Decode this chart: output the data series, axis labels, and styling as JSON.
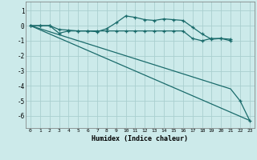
{
  "xlabel": "Humidex (Indice chaleur)",
  "background_color": "#cceaea",
  "grid_color": "#aacfcf",
  "line_color": "#1a6b6b",
  "xlim": [
    -0.5,
    23.5
  ],
  "ylim": [
    -6.8,
    1.6
  ],
  "yticks": [
    1,
    0,
    -1,
    -2,
    -3,
    -4,
    -5,
    -6
  ],
  "xticks": [
    0,
    1,
    2,
    3,
    4,
    5,
    6,
    7,
    8,
    9,
    10,
    11,
    12,
    13,
    14,
    15,
    16,
    17,
    18,
    19,
    20,
    21,
    22,
    23
  ],
  "line1_x": [
    0,
    1,
    2,
    3,
    4,
    5,
    6,
    7,
    8,
    9,
    10,
    11,
    12,
    13,
    14,
    15,
    16,
    17,
    18,
    19,
    20,
    21
  ],
  "line1_y": [
    0.0,
    0.0,
    0.0,
    -0.25,
    -0.3,
    -0.35,
    -0.35,
    -0.4,
    -0.2,
    0.2,
    0.65,
    0.55,
    0.4,
    0.35,
    0.45,
    0.4,
    0.35,
    -0.1,
    -0.55,
    -0.9,
    -0.85,
    -0.9
  ],
  "line2_x": [
    0,
    1,
    2,
    3,
    4,
    5,
    6,
    7,
    8,
    9,
    10,
    11,
    12,
    13,
    14,
    15,
    16,
    17,
    18,
    19,
    20,
    21
  ],
  "line2_y": [
    0.0,
    0.0,
    0.0,
    -0.5,
    -0.35,
    -0.35,
    -0.35,
    -0.35,
    -0.35,
    -0.35,
    -0.35,
    -0.35,
    -0.35,
    -0.35,
    -0.35,
    -0.35,
    -0.35,
    -0.85,
    -1.0,
    -0.85,
    -0.85,
    -1.0
  ],
  "line3_x": [
    0,
    23
  ],
  "line3_y": [
    0.0,
    -6.3
  ],
  "line4_x": [
    0,
    21,
    22,
    23
  ],
  "line4_y": [
    0.0,
    -4.2,
    -5.0,
    -6.3
  ]
}
